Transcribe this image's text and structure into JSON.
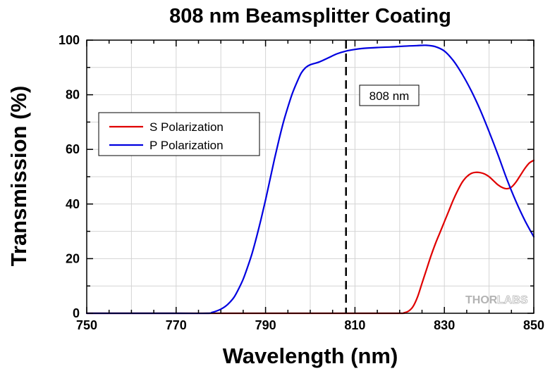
{
  "chart_data": {
    "type": "line",
    "title": "808 nm Beamsplitter Coating",
    "xlabel": "Wavelength (nm)",
    "ylabel": "Transmission (%)",
    "xlim": [
      750,
      850
    ],
    "ylim": [
      0,
      100
    ],
    "xticks": [
      750,
      770,
      790,
      810,
      830,
      850
    ],
    "yticks": [
      0,
      20,
      40,
      60,
      80,
      100
    ],
    "grid": true,
    "legend_placement": "left-middle",
    "annotation": {
      "label": "808 nm",
      "x": 808,
      "style": "dashed-vertical-line"
    },
    "watermark": {
      "brand_part1": "THOR",
      "brand_part2": "LABS"
    },
    "series": [
      {
        "name": "S Polarization",
        "color": "#e00000",
        "points": [
          [
            750,
            0
          ],
          [
            770,
            0
          ],
          [
            790,
            0
          ],
          [
            810,
            0
          ],
          [
            820,
            0
          ],
          [
            821,
            0.2
          ],
          [
            822,
            0.8
          ],
          [
            823,
            2.5
          ],
          [
            824,
            6
          ],
          [
            825,
            11
          ],
          [
            826,
            16
          ],
          [
            827,
            21
          ],
          [
            828,
            25.5
          ],
          [
            829,
            29.5
          ],
          [
            830,
            33.5
          ],
          [
            831,
            37.5
          ],
          [
            832,
            41.5
          ],
          [
            833,
            45
          ],
          [
            834,
            48
          ],
          [
            835,
            50
          ],
          [
            836,
            51.2
          ],
          [
            837,
            51.6
          ],
          [
            838,
            51.5
          ],
          [
            839,
            51
          ],
          [
            840,
            50
          ],
          [
            841,
            48.5
          ],
          [
            842,
            47
          ],
          [
            843,
            46
          ],
          [
            844,
            45.6
          ],
          [
            845,
            46.2
          ],
          [
            846,
            48
          ],
          [
            847,
            50.5
          ],
          [
            848,
            53
          ],
          [
            849,
            55
          ],
          [
            850,
            56
          ]
        ]
      },
      {
        "name": "P Polarization",
        "color": "#0000e0",
        "points": [
          [
            750,
            0
          ],
          [
            770,
            0
          ],
          [
            777,
            0
          ],
          [
            778,
            0.3
          ],
          [
            779,
            0.8
          ],
          [
            780,
            1.5
          ],
          [
            781,
            2.5
          ],
          [
            782,
            4
          ],
          [
            783,
            6
          ],
          [
            784,
            9
          ],
          [
            785,
            12.5
          ],
          [
            786,
            17
          ],
          [
            787,
            22
          ],
          [
            788,
            28
          ],
          [
            789,
            34.5
          ],
          [
            790,
            41.5
          ],
          [
            791,
            49
          ],
          [
            792,
            56.5
          ],
          [
            793,
            63.5
          ],
          [
            794,
            70
          ],
          [
            795,
            75.5
          ],
          [
            796,
            80.5
          ],
          [
            797,
            84.5
          ],
          [
            798,
            88
          ],
          [
            799,
            90
          ],
          [
            800,
            91
          ],
          [
            802,
            92
          ],
          [
            804,
            93.5
          ],
          [
            806,
            95
          ],
          [
            808,
            96
          ],
          [
            810,
            96.6
          ],
          [
            812,
            97
          ],
          [
            815,
            97.3
          ],
          [
            818,
            97.5
          ],
          [
            821,
            97.8
          ],
          [
            824,
            98
          ],
          [
            826,
            98.1
          ],
          [
            828,
            97.6
          ],
          [
            830,
            96
          ],
          [
            832,
            92.5
          ],
          [
            834,
            87.5
          ],
          [
            836,
            81.5
          ],
          [
            838,
            74.5
          ],
          [
            840,
            66.5
          ],
          [
            842,
            58
          ],
          [
            844,
            49
          ],
          [
            846,
            41
          ],
          [
            848,
            34
          ],
          [
            850,
            28
          ]
        ]
      }
    ]
  }
}
